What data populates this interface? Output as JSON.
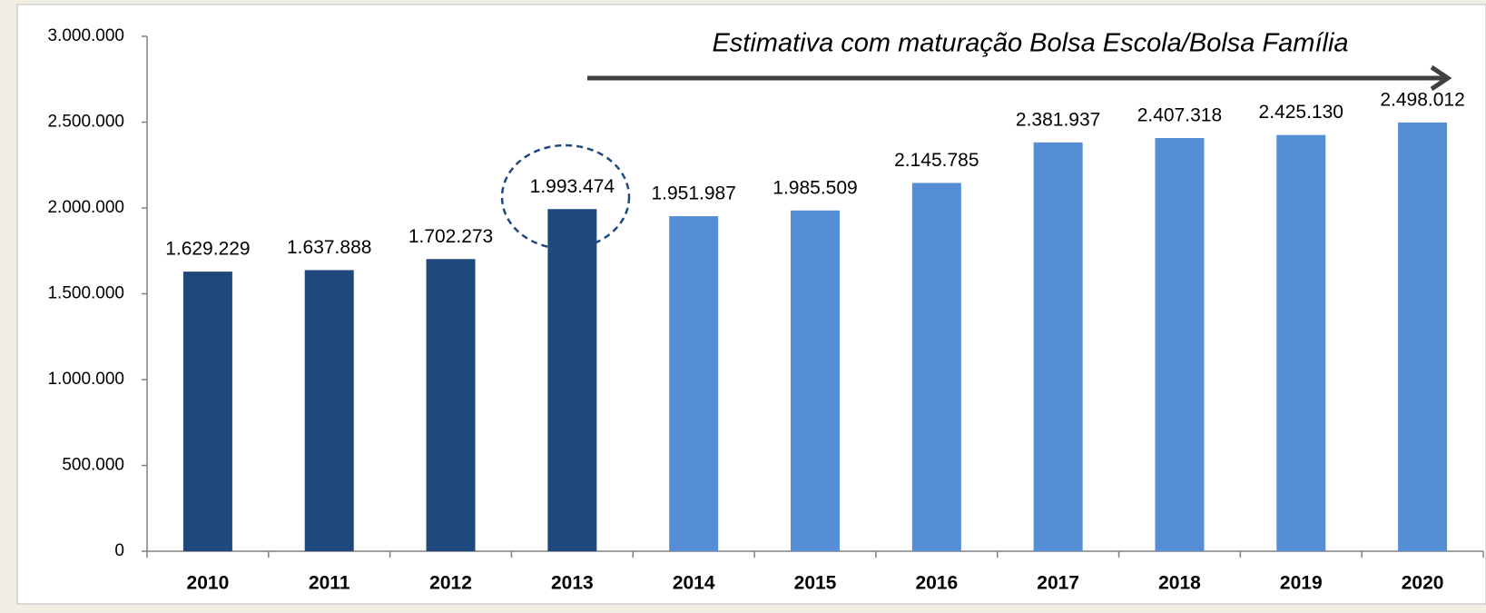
{
  "chart_data": {
    "type": "bar",
    "annotation": "Estimativa com maturação Bolsa Escola/Bolsa Família",
    "categories": [
      "2010",
      "2011",
      "2012",
      "2013",
      "2014",
      "2015",
      "2016",
      "2017",
      "2018",
      "2019",
      "2020"
    ],
    "values": [
      1629229,
      1637888,
      1702273,
      1993474,
      1951987,
      1985509,
      2145785,
      2381937,
      2407318,
      2425130,
      2498012
    ],
    "value_labels": [
      "1.629.229",
      "1.637.888",
      "1.702.273",
      "1.993.474",
      "1.951.987",
      "1.985.509",
      "2.145.785",
      "2.381.937",
      "2.407.318",
      "2.425.130",
      "2.498.012"
    ],
    "colors": [
      "#1f497d",
      "#1f497d",
      "#1f497d",
      "#1f497d",
      "#558ed5",
      "#558ed5",
      "#558ed5",
      "#558ed5",
      "#558ed5",
      "#558ed5",
      "#558ed5"
    ],
    "ylim": [
      0,
      3000000
    ],
    "yticks": [
      0,
      {
        "value": 500000,
        "label": "500.000"
      },
      {
        "value": 1000000,
        "label": "1.000.000"
      },
      {
        "value": 1500000,
        "label": "1.500.000"
      },
      {
        "value": 2000000,
        "label": "2.000.000"
      },
      {
        "value": 2500000,
        "label": "2.500.000"
      },
      {
        "value": 3000000,
        "label": "3.000.000"
      }
    ],
    "grid": false
  }
}
